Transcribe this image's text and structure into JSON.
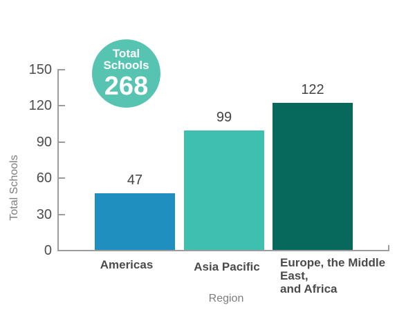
{
  "badge": {
    "line1": "Total",
    "line2": "Schools",
    "value": "268",
    "color": "#57C4B2"
  },
  "chart_data": {
    "type": "bar",
    "title": "",
    "categories": [
      "Americas",
      "Asia Pacific",
      "Europe, the Middle East,\nand Africa"
    ],
    "values": [
      47,
      99,
      122
    ],
    "bar_colors": [
      "#1E8FBE",
      "#3FBFAD",
      "#07695C"
    ],
    "value_labels": [
      "47",
      "99",
      "122"
    ],
    "xlabel": "Region",
    "ylabel": "Total Schools",
    "ylim": [
      0,
      150
    ],
    "yticks": [
      0,
      30,
      60,
      90,
      120,
      150
    ],
    "grid": false,
    "legend": false,
    "axis_color": "#9c9c9c",
    "annotation": {
      "text": "Total Schools 268",
      "total": 268
    }
  }
}
